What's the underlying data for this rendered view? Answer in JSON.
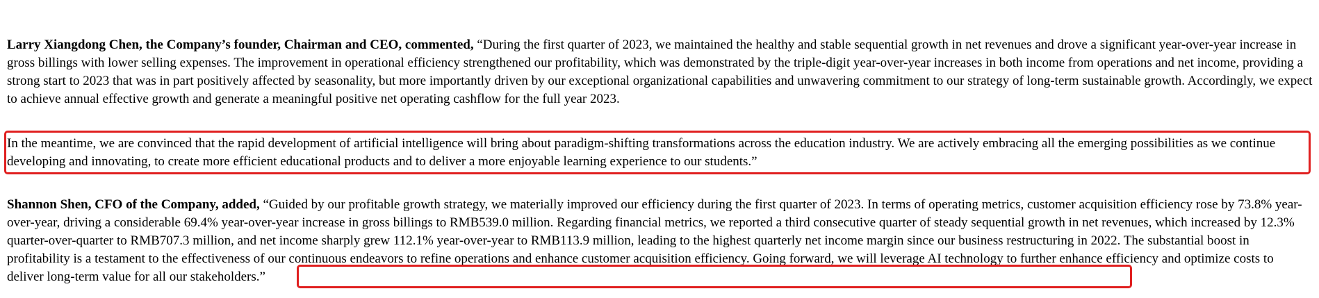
{
  "doc": {
    "para1": {
      "speaker": "Larry Xiangdong Chen, the Company’s founder, Chairman and CEO, commented,",
      "text": " “During the first quarter of 2023, we maintained the healthy and stable sequential growth in net revenues and drove a significant year-over-year increase in gross billings with lower selling expenses. The improvement in operational efficiency strengthened our profitability, which was demonstrated by the triple-digit year-over-year increases in both income from operations and net income, providing a strong start to 2023 that was in part positively affected by seasonality, but more importantly driven by our exceptional organizational capabilities and unwavering commitment to our strategy of long-term sustainable growth. Accordingly, we expect to achieve annual effective growth and generate a meaningful positive net operating cashflow for the full year 2023."
    },
    "para2": {
      "text": "In the meantime, we are convinced that the rapid development of artificial intelligence will bring about paradigm-shifting transformations across the education industry. We are actively embracing all the emerging possibilities as we continue developing and innovating, to create more efficient educational products and to deliver a more enjoyable learning experience to our students.”"
    },
    "para3": {
      "speaker": "Shannon Shen, CFO of the Company, added,",
      "text": " “Guided by our profitable growth strategy, we materially improved our efficiency during the first quarter of 2023. In terms of operating metrics, customer acquisition efficiency rose by 73.8% year-over-year, driving a considerable 69.4% year-over-year increase in gross billings to RMB539.0 million. Regarding financial metrics, we reported a third consecutive quarter of steady sequential growth in net revenues, which increased by 12.3% quarter-over-quarter to RMB707.3 million, and net income sharply grew 112.1% year-over-year to RMB113.9 million, leading to the highest quarterly net income margin since our business restructuring in 2022. The substantial boost in profitability is a testament to the effectiveness of our continuous endeavors to refine operations and enhance customer acquisition efficiency. Going forward,",
      "highlight": " we will leverage AI technology to further enhance efficiency and optimize costs to deliver long-term value for all our stakeholders.”"
    }
  },
  "annotation": {
    "color": "#e02020"
  }
}
